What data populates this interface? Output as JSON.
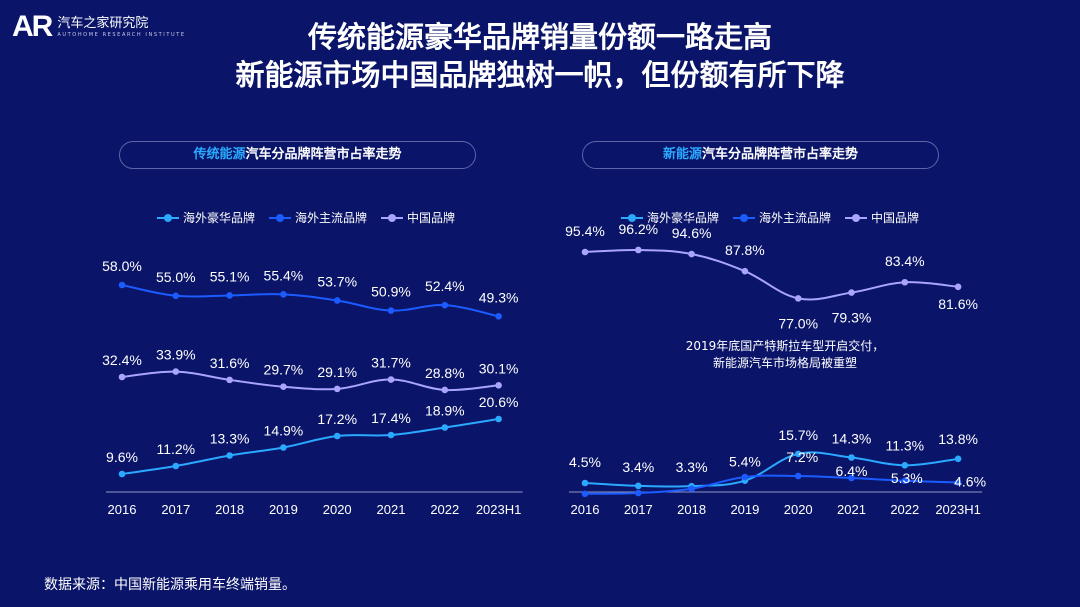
{
  "header": {
    "logo_mark": "AR",
    "logo_name": "汽车之家研究院",
    "logo_sub": "AUTOHOME RESEARCH INSTITUTE",
    "title_line1": "传统能源豪华品牌销量份额一路走高",
    "title_line2": "新能源市场中国品牌独树一帜，但份额有所下降"
  },
  "left_panel": {
    "title_highlight": "传统能源",
    "title_rest": "汽车分品牌阵营市占率走势"
  },
  "right_panel": {
    "title_highlight": "新能源",
    "title_rest": "汽车分品牌阵营市占率走势",
    "annotation_line1": "2019年底国产特斯拉车型开启交付，",
    "annotation_line2": "新能源汽车市场格局被重塑"
  },
  "source": "数据来源：中国新能源乘用车终端销量。",
  "colors": {
    "background": "#0a1468",
    "luxury": "#2aa9ff",
    "mainstream": "#1b5bff",
    "china": "#a9a4ff"
  },
  "chart_data": [
    {
      "type": "line",
      "title": "传统能源汽车分品牌阵营市占率走势",
      "categories": [
        "2016",
        "2017",
        "2018",
        "2019",
        "2020",
        "2021",
        "2022",
        "2023H1"
      ],
      "ylim": [
        0,
        70
      ],
      "series": [
        {
          "name": "海外豪华品牌",
          "color": "#2aa9ff",
          "values": [
            9.6,
            11.2,
            13.3,
            14.9,
            17.2,
            17.4,
            18.9,
            20.6
          ],
          "labels": [
            "9.6%",
            "11.2%",
            "13.3%",
            "14.9%",
            "17.2%",
            "17.4%",
            "18.9%",
            "20.6%"
          ]
        },
        {
          "name": "海外主流品牌",
          "color": "#1b5bff",
          "values": [
            58.0,
            55.0,
            55.1,
            55.4,
            53.7,
            50.9,
            52.4,
            49.3
          ],
          "labels": [
            "58.0%",
            "55.0%",
            "55.1%",
            "55.4%",
            "53.7%",
            "50.9%",
            "52.4%",
            "49.3%"
          ]
        },
        {
          "name": "中国品牌",
          "color": "#a9a4ff",
          "values": [
            32.4,
            33.9,
            31.6,
            29.7,
            29.1,
            31.7,
            28.8,
            30.1
          ],
          "labels": [
            "32.4%",
            "33.9%",
            "31.6%",
            "29.7%",
            "29.1%",
            "31.7%",
            "28.8%",
            "30.1%"
          ]
        }
      ]
    },
    {
      "type": "line",
      "title": "新能源汽车分品牌阵营市占率走势",
      "categories": [
        "2016",
        "2017",
        "2018",
        "2019",
        "2020",
        "2021",
        "2022",
        "2023H1"
      ],
      "ylim": [
        0,
        100
      ],
      "series": [
        {
          "name": "海外豪华品牌",
          "color": "#2aa9ff",
          "values": [
            4.5,
            3.4,
            3.3,
            5.4,
            15.7,
            14.3,
            11.3,
            13.8
          ],
          "labels": [
            "4.5%",
            "3.4%",
            "3.3%",
            "5.4%",
            "15.7%",
            "14.3%",
            "11.3%",
            "13.8%"
          ]
        },
        {
          "name": "海外主流品牌",
          "color": "#1b5bff",
          "values": [
            0.1,
            0.4,
            2.1,
            6.8,
            7.2,
            6.4,
            5.3,
            4.6
          ],
          "labels": [
            "",
            "",
            "",
            "",
            "7.2%",
            "6.4%",
            "5.3%",
            "4.6%"
          ]
        },
        {
          "name": "中国品牌",
          "color": "#a9a4ff",
          "values": [
            95.4,
            96.2,
            94.6,
            87.8,
            77.0,
            79.3,
            83.4,
            81.6
          ],
          "labels": [
            "95.4%",
            "96.2%",
            "94.6%",
            "87.8%",
            "77.0%",
            "79.3%",
            "83.4%",
            "81.6%"
          ]
        }
      ]
    }
  ]
}
